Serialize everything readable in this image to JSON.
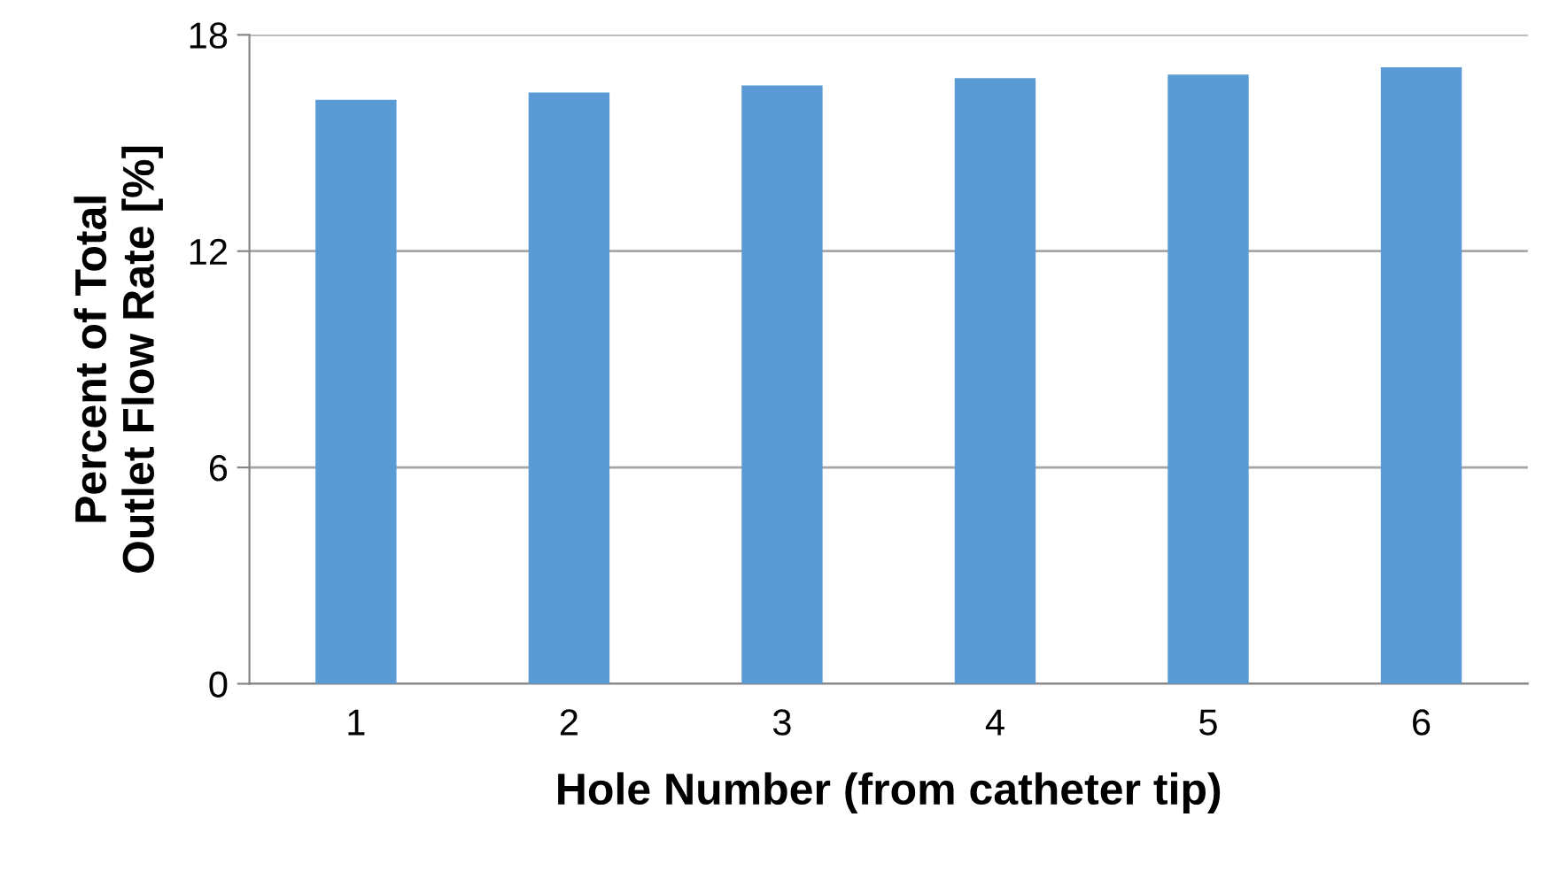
{
  "chart_data": {
    "type": "bar",
    "xlabel": "Hole Number (from catheter tip)",
    "ylabel": "Percent of Total\nOutlet Flow Rate [%]",
    "categories": [
      "1",
      "2",
      "3",
      "4",
      "5",
      "6"
    ],
    "values": [
      16.2,
      16.4,
      16.6,
      16.8,
      16.9,
      17.1
    ],
    "color": "#5b9bd5",
    "ylim": [
      0,
      18
    ],
    "yticks": [
      0,
      6,
      12,
      18
    ],
    "grid": "y"
  }
}
